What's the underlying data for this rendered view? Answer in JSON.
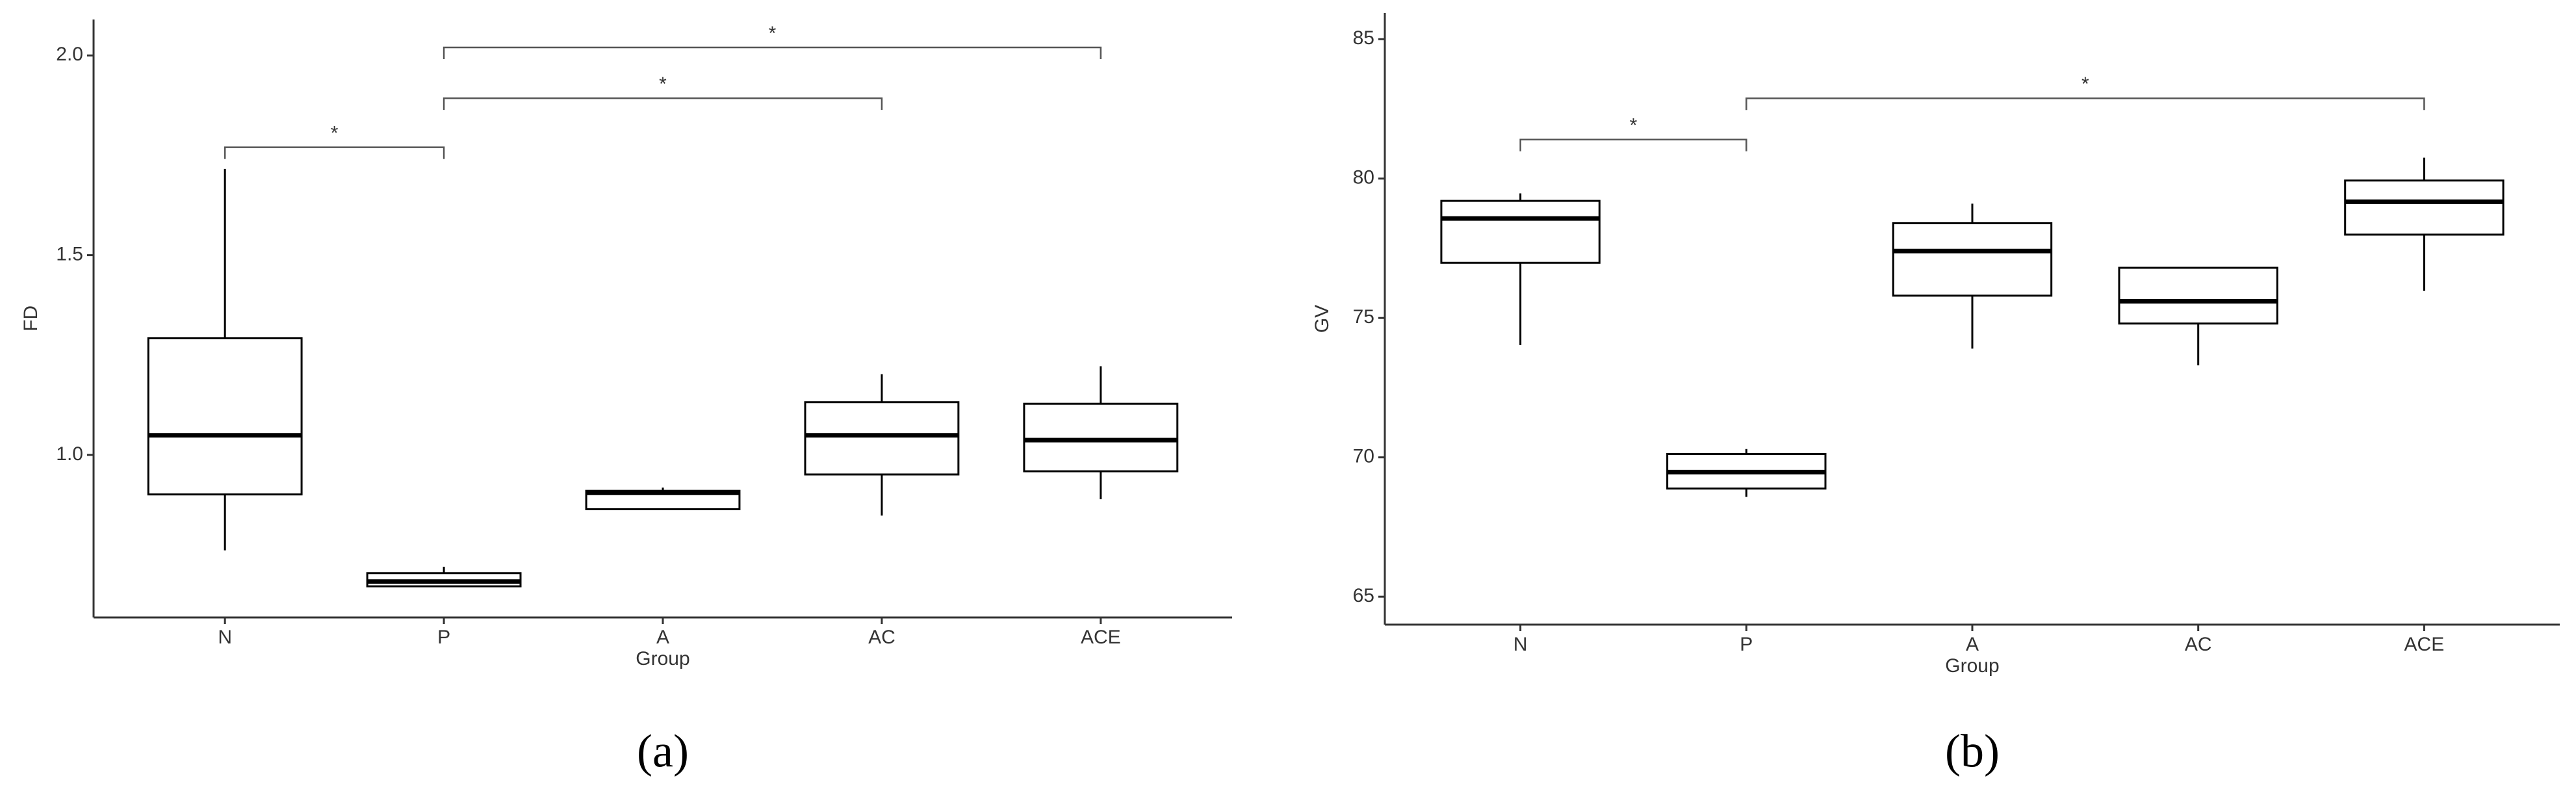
{
  "chart_data": [
    {
      "type": "box",
      "caption": "(a)",
      "xlabel": "Group",
      "ylabel": "FD",
      "categories": [
        "N",
        "P",
        "A",
        "AC",
        "ACE"
      ],
      "min": [
        0.761,
        0.67,
        0.864,
        0.848,
        0.889
      ],
      "q1": [
        0.901,
        0.671,
        0.864,
        0.951,
        0.959
      ],
      "median": [
        1.049,
        0.683,
        0.905,
        1.049,
        1.037
      ],
      "q3": [
        1.292,
        0.704,
        0.91,
        1.132,
        1.128
      ],
      "max": [
        1.716,
        0.72,
        0.918,
        1.202,
        1.222
      ],
      "color": "#000000",
      "fill": "#ffffff",
      "ylim": [
        0.593,
        2.09
      ],
      "yticks": [
        {
          "value": 1,
          "label": "1.0"
        },
        {
          "value": 1.5,
          "label": "1.5"
        },
        {
          "value": 2,
          "label": "2.0"
        }
      ],
      "significance": [
        {
          "from": "N",
          "to": "P",
          "y": 1.77,
          "label": "*"
        },
        {
          "from": "P",
          "to": "AC",
          "y": 1.893,
          "label": "*"
        },
        {
          "from": "P",
          "to": "ACE",
          "y": 2.02,
          "label": "*"
        }
      ]
    },
    {
      "type": "box",
      "caption": "(b)",
      "xlabel": "Group",
      "ylabel": "GV",
      "categories": [
        "N",
        "P",
        "A",
        "AC",
        "ACE"
      ],
      "min": [
        74.03,
        68.58,
        73.9,
        73.3,
        75.97
      ],
      "q1": [
        76.98,
        68.88,
        75.8,
        74.8,
        77.99
      ],
      "median": [
        78.57,
        69.47,
        77.4,
        75.6,
        79.17
      ],
      "q3": [
        79.2,
        70.12,
        78.4,
        76.8,
        79.93
      ],
      "max": [
        79.47,
        70.3,
        79.1,
        76.8,
        80.75
      ],
      "color": "#000000",
      "fill": "#ffffff",
      "ylim": [
        64,
        85.94
      ],
      "yticks": [
        65,
        70,
        75,
        80,
        85
      ],
      "significance": [
        {
          "from": "N",
          "to": "P",
          "y": 81.4,
          "label": "*"
        },
        {
          "from": "P",
          "to": "ACE",
          "y": 82.88,
          "label": "*"
        }
      ]
    }
  ]
}
